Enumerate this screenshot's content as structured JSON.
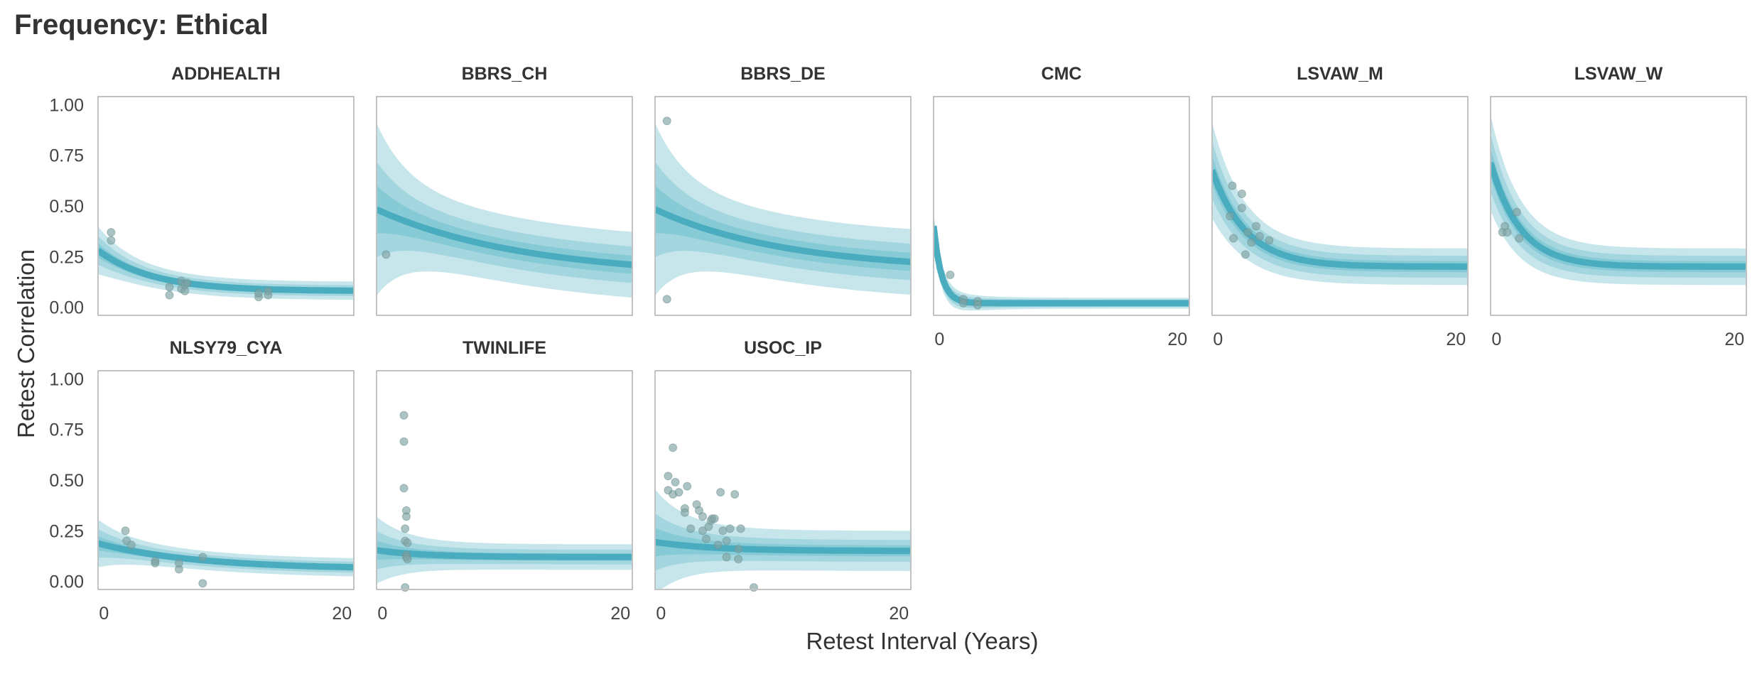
{
  "chart_data": {
    "type": "line",
    "title": "Frequency: Ethical",
    "xlabel": "Retest Interval (Years)",
    "ylabel": "Retest Correlation",
    "xlim": [
      -0.5,
      21
    ],
    "ylim": [
      -0.04,
      1.04
    ],
    "x_ticks": [
      0,
      20
    ],
    "y_ticks": [
      0.0,
      0.25,
      0.5,
      0.75,
      1.0
    ],
    "y_tick_labels": [
      "0.00",
      "0.25",
      "0.50",
      "0.75",
      "1.00"
    ],
    "grid": false,
    "colors": {
      "band_outer": "#c6e6eb",
      "band_mid": "#a3d6df",
      "band_inner": "#86cad6",
      "line": "#4aacbf",
      "point": "#7fa3a3",
      "frame": "#c2c2c2"
    },
    "panels": [
      {
        "name": "ADDHEALTH",
        "row": 0,
        "col": 0,
        "fit": {
          "stab": 0.08,
          "a": 0.18,
          "b": 0.22,
          "spread": [
            0.015,
            0.03,
            0.05
          ]
        },
        "points": [
          [
            0.6,
            0.37
          ],
          [
            0.6,
            0.33
          ],
          [
            5.5,
            0.06
          ],
          [
            5.5,
            0.1
          ],
          [
            6.5,
            0.13
          ],
          [
            6.5,
            0.09
          ],
          [
            6.8,
            0.08
          ],
          [
            6.8,
            0.11
          ],
          [
            7.0,
            0.12
          ],
          [
            13.0,
            0.05
          ],
          [
            13.0,
            0.07
          ],
          [
            13.8,
            0.08
          ],
          [
            13.8,
            0.06
          ]
        ]
      },
      {
        "name": "BBRS_CH",
        "row": 0,
        "col": 1,
        "fit": {
          "stab": 0.15,
          "a": 0.32,
          "b": 0.08,
          "spread": [
            0.05,
            0.1,
            0.18
          ]
        },
        "points": [
          [
            0.3,
            0.26
          ]
        ]
      },
      {
        "name": "BBRS_DE",
        "row": 0,
        "col": 2,
        "fit": {
          "stab": 0.18,
          "a": 0.29,
          "b": 0.09,
          "spread": [
            0.05,
            0.1,
            0.18
          ]
        },
        "points": [
          [
            0.5,
            0.92
          ],
          [
            0.5,
            0.04
          ]
        ]
      },
      {
        "name": "CMC",
        "row": 0,
        "col": 3,
        "fit": {
          "stab": 0.02,
          "a": 0.18,
          "b": 1.5,
          "spread": [
            0.01,
            0.02,
            0.03
          ]
        },
        "points": [
          [
            0.9,
            0.16
          ],
          [
            2.0,
            0.04
          ],
          [
            2.0,
            0.02
          ],
          [
            3.2,
            0.03
          ],
          [
            3.2,
            0.01
          ]
        ]
      },
      {
        "name": "LSVAW_M",
        "row": 0,
        "col": 4,
        "fit": {
          "stab": 0.2,
          "a": 0.4,
          "b": 0.35,
          "spread": [
            0.03,
            0.06,
            0.1
          ]
        },
        "points": [
          [
            1.0,
            0.45
          ],
          [
            1.2,
            0.6
          ],
          [
            1.3,
            0.34
          ],
          [
            2.0,
            0.56
          ],
          [
            2.0,
            0.49
          ],
          [
            2.3,
            0.26
          ],
          [
            2.5,
            0.37
          ],
          [
            2.8,
            0.32
          ],
          [
            3.2,
            0.4
          ],
          [
            3.5,
            0.35
          ],
          [
            4.3,
            0.33
          ]
        ]
      },
      {
        "name": "LSVAW_W",
        "row": 0,
        "col": 5,
        "fit": {
          "stab": 0.2,
          "a": 0.42,
          "b": 0.4,
          "spread": [
            0.03,
            0.06,
            0.1
          ]
        },
        "points": [
          [
            0.5,
            0.37
          ],
          [
            0.7,
            0.4
          ],
          [
            0.9,
            0.37
          ],
          [
            1.7,
            0.47
          ],
          [
            1.9,
            0.34
          ]
        ]
      },
      {
        "name": "NLSY79_CYA",
        "row": 1,
        "col": 0,
        "fit": {
          "stab": 0.06,
          "a": 0.12,
          "b": 0.12,
          "spread": [
            0.015,
            0.03,
            0.05
          ]
        },
        "points": [
          [
            1.8,
            0.25
          ],
          [
            1.9,
            0.2
          ],
          [
            2.3,
            0.18
          ],
          [
            4.3,
            0.1
          ],
          [
            4.3,
            0.09
          ],
          [
            6.3,
            0.06
          ],
          [
            6.3,
            0.09
          ],
          [
            8.3,
            0.12
          ],
          [
            8.3,
            -0.01
          ]
        ]
      },
      {
        "name": "TWINLIFE",
        "row": 1,
        "col": 1,
        "fit": {
          "stab": 0.12,
          "a": 0.03,
          "b": 0.25,
          "spread": [
            0.02,
            0.04,
            0.07
          ]
        },
        "points": [
          [
            1.8,
            0.82
          ],
          [
            1.8,
            0.69
          ],
          [
            1.8,
            0.46
          ],
          [
            2.0,
            0.35
          ],
          [
            2.0,
            0.32
          ],
          [
            1.9,
            0.26
          ],
          [
            1.9,
            0.2
          ],
          [
            2.1,
            0.19
          ],
          [
            2.0,
            0.13
          ],
          [
            2.0,
            0.12
          ],
          [
            2.1,
            0.11
          ],
          [
            1.9,
            -0.03
          ]
        ]
      },
      {
        "name": "USOC_IP",
        "row": 1,
        "col": 2,
        "fit": {
          "stab": 0.15,
          "a": 0.04,
          "b": 0.2,
          "spread": [
            0.03,
            0.06,
            0.11
          ]
        },
        "points": [
          [
            0.6,
            0.52
          ],
          [
            0.6,
            0.45
          ],
          [
            1.0,
            0.66
          ],
          [
            1.0,
            0.43
          ],
          [
            1.2,
            0.49
          ],
          [
            1.5,
            0.44
          ],
          [
            2.0,
            0.36
          ],
          [
            2.0,
            0.34
          ],
          [
            2.2,
            0.47
          ],
          [
            2.5,
            0.26
          ],
          [
            3.0,
            0.38
          ],
          [
            3.2,
            0.35
          ],
          [
            3.5,
            0.25
          ],
          [
            3.5,
            0.32
          ],
          [
            3.8,
            0.21
          ],
          [
            4.0,
            0.27
          ],
          [
            4.2,
            0.3
          ],
          [
            4.3,
            0.31
          ],
          [
            4.5,
            0.31
          ],
          [
            4.8,
            0.18
          ],
          [
            5.0,
            0.44
          ],
          [
            5.2,
            0.25
          ],
          [
            5.5,
            0.2
          ],
          [
            5.5,
            0.12
          ],
          [
            5.8,
            0.26
          ],
          [
            6.2,
            0.43
          ],
          [
            6.5,
            0.11
          ],
          [
            6.7,
            0.26
          ],
          [
            6.5,
            0.16
          ],
          [
            7.8,
            -0.03
          ]
        ]
      }
    ]
  }
}
